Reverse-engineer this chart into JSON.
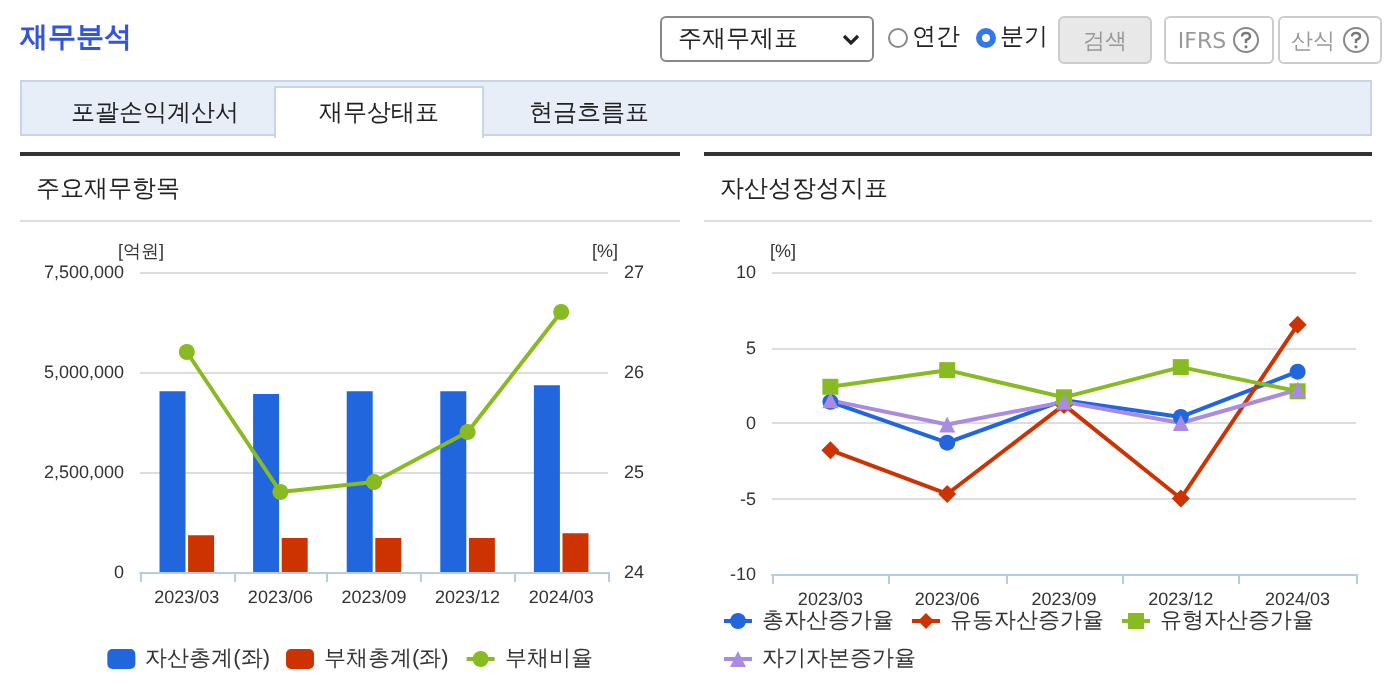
{
  "chart_data": [
    {
      "type": "other",
      "title": "재무분석",
      "annotations": [
        "주재무제표",
        "연간",
        "분기",
        "검색",
        "IFRS",
        "산식",
        "포괄손익계산서",
        "재무상태표",
        "현금흐름표"
      ]
    },
    {
      "type": "bar",
      "title": "주요재무항목",
      "ylabel": "[억원]",
      "y2label": "[%]",
      "categories": [
        "2023/03",
        "2023/06",
        "2023/09",
        "2023/12",
        "2024/03"
      ],
      "series": [
        {
          "name": "자산총계(좌)",
          "color": "#2266dd",
          "values": [
            4520000,
            4450000,
            4520000,
            4520000,
            4670000
          ]
        },
        {
          "name": "부채총계(좌)",
          "color": "#cc3300",
          "values": [
            920000,
            850000,
            850000,
            850000,
            970000
          ]
        },
        {
          "name": "부채비율",
          "type": "line",
          "axis": "y2",
          "color": "#88bb22",
          "marker": "circle",
          "values": [
            26.2,
            24.8,
            24.9,
            25.4,
            26.6
          ]
        }
      ],
      "ylim": [
        0,
        7500000
      ],
      "yticks": [
        0,
        {
          "value": 2500000,
          "label": "2,500,000"
        },
        {
          "value": 5000000,
          "label": "5,000,000"
        },
        {
          "value": 7500000,
          "label": "7,500,000"
        }
      ],
      "y2lim": [
        24,
        27
      ],
      "y2ticks": [
        24,
        25,
        26,
        27
      ],
      "grid": "y",
      "legend": "bottom"
    },
    {
      "type": "line",
      "title": "자산성장성지표",
      "ylabel": "[%]",
      "categories": [
        "2023/03",
        "2023/06",
        "2023/09",
        "2023/12",
        "2024/03"
      ],
      "series": [
        {
          "name": "총자산증가율",
          "color": "#2266dd",
          "marker": "circle",
          "values": [
            1.4,
            -1.3,
            1.5,
            0.4,
            3.4
          ]
        },
        {
          "name": "유동자산증가율",
          "color": "#cc3300",
          "marker": "diamond",
          "values": [
            -1.8,
            -4.7,
            1.2,
            -5.0,
            6.5
          ]
        },
        {
          "name": "유형자산증가율",
          "color": "#88bb22",
          "marker": "square",
          "values": [
            2.4,
            3.5,
            1.7,
            3.7,
            2.1
          ]
        },
        {
          "name": "자기자본증가율",
          "color": "#a98be2",
          "marker": "triangle",
          "values": [
            1.5,
            -0.1,
            1.4,
            0.0,
            2.2
          ]
        }
      ],
      "ylim": [
        -10,
        10
      ],
      "yticks": [
        -10,
        -5,
        0,
        5,
        10
      ],
      "grid": "y",
      "legend": "bottom"
    }
  ]
}
